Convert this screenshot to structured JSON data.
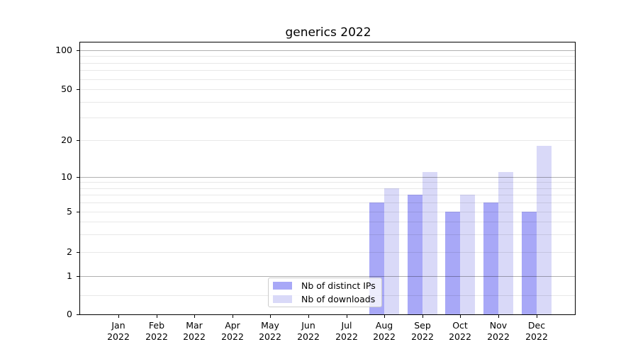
{
  "chart_data": {
    "type": "bar",
    "title": "generics 2022",
    "categories": [
      "Jan 2022",
      "Feb 2022",
      "Mar 2022",
      "Apr 2022",
      "May 2022",
      "Jun 2022",
      "Jul 2022",
      "Aug 2022",
      "Sep 2022",
      "Oct 2022",
      "Nov 2022",
      "Dec 2022"
    ],
    "series": [
      {
        "name": "Nb of distinct IPs",
        "color": "#a8a8f7",
        "values": [
          0,
          0,
          0,
          0,
          0,
          0,
          0,
          6,
          7,
          5,
          6,
          5
        ]
      },
      {
        "name": "Nb of downloads",
        "color": "#d9d9f8",
        "values": [
          0,
          0,
          0,
          0,
          0,
          0,
          0,
          8,
          11,
          7,
          11,
          18
        ]
      }
    ],
    "y_axis": {
      "scale": "symlog",
      "tick_values": [
        0,
        1,
        2,
        5,
        10,
        20,
        50,
        100
      ],
      "tick_labels": [
        "0",
        "1",
        "2",
        "5",
        "10",
        "20",
        "50",
        "100"
      ],
      "major_gridlines": [
        1,
        10,
        100
      ],
      "minor_gridlines": [
        0.5,
        2,
        3,
        4,
        5,
        6,
        7,
        8,
        9,
        20,
        30,
        40,
        50,
        60,
        70,
        80,
        90
      ],
      "ylim": [
        0,
        120
      ]
    },
    "legend": {
      "position": "lower center inside"
    },
    "grid": true,
    "colors": {
      "background": "#ffffff",
      "axis": "#000000",
      "text": "#000000",
      "major_grid": "#b0b0b0",
      "minor_grid": "#e8e8e8",
      "legend_border": "#cccccc"
    }
  }
}
